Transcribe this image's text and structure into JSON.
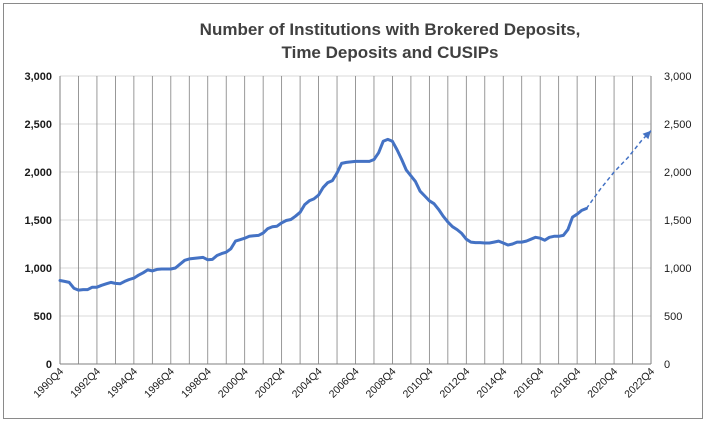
{
  "chart_data": {
    "type": "line",
    "title_line1": "Number of Institutions with Brokered Deposits,",
    "title_line2": "Time Deposits and CUSIPs",
    "xlabel": "",
    "ylabel": "",
    "ylim": [
      0,
      3000
    ],
    "y_ticks": [
      "0",
      "500",
      "1,000",
      "1,500",
      "2,000",
      "2,500",
      "3,000"
    ],
    "x_tick_labels": [
      "1990Q4",
      "1992Q4",
      "1994Q4",
      "1996Q4",
      "1998Q4",
      "2000Q4",
      "2002Q4",
      "2004Q4",
      "2006Q4",
      "2008Q4",
      "2010Q4",
      "2012Q4",
      "2014Q4",
      "2016Q4",
      "2018Q4",
      "2020Q4",
      "2022Q4"
    ],
    "x_range": [
      1990.75,
      2022.75
    ],
    "grid": "vertical lines every year, horizontal lines every 500",
    "legend": "none",
    "line_color": "#4472C4",
    "series": [
      {
        "style": "solid",
        "x": [
          1990.75,
          1991.0,
          1991.25,
          1991.5,
          1991.75,
          1992.0,
          1992.25,
          1992.5,
          1992.75,
          1993.0,
          1993.25,
          1993.5,
          1993.75,
          1994.0,
          1994.25,
          1994.5,
          1994.75,
          1995.0,
          1995.25,
          1995.5,
          1995.75,
          1996.0,
          1996.25,
          1996.5,
          1996.75,
          1997.0,
          1997.25,
          1997.5,
          1997.75,
          1998.0,
          1998.25,
          1998.5,
          1998.75,
          1999.0,
          1999.25,
          1999.5,
          1999.75,
          2000.0,
          2000.25,
          2000.5,
          2000.75,
          2001.0,
          2001.25,
          2001.5,
          2001.75,
          2002.0,
          2002.25,
          2002.5,
          2002.75,
          2003.0,
          2003.25,
          2003.5,
          2003.75,
          2004.0,
          2004.25,
          2004.5,
          2004.75,
          2005.0,
          2005.25,
          2005.5,
          2005.75,
          2006.0,
          2006.25,
          2006.5,
          2006.75,
          2007.0,
          2007.25,
          2007.5,
          2007.75,
          2008.0,
          2008.25,
          2008.5,
          2008.75,
          2009.0,
          2009.25,
          2009.5,
          2009.75,
          2010.0,
          2010.25,
          2010.5,
          2010.75,
          2011.0,
          2011.25,
          2011.5,
          2011.75,
          2012.0,
          2012.25,
          2012.5,
          2012.75,
          2013.0,
          2013.25,
          2013.5,
          2013.75,
          2014.0,
          2014.25,
          2014.5,
          2014.75,
          2015.0,
          2015.25,
          2015.5,
          2015.75,
          2016.0,
          2016.25,
          2016.5,
          2016.75,
          2017.0,
          2017.25,
          2017.5,
          2017.75,
          2018.0,
          2018.25,
          2018.5,
          2018.75,
          2019.0,
          2019.25
        ],
        "y": [
          870,
          860,
          850,
          790,
          770,
          775,
          775,
          800,
          800,
          820,
          835,
          850,
          840,
          835,
          860,
          880,
          895,
          925,
          950,
          980,
          970,
          985,
          990,
          990,
          990,
          1000,
          1040,
          1080,
          1095,
          1100,
          1105,
          1110,
          1085,
          1090,
          1130,
          1150,
          1165,
          1200,
          1280,
          1295,
          1310,
          1330,
          1335,
          1340,
          1365,
          1410,
          1430,
          1435,
          1470,
          1495,
          1505,
          1540,
          1580,
          1660,
          1700,
          1720,
          1760,
          1840,
          1890,
          1910,
          1990,
          2090,
          2100,
          2105,
          2110,
          2110,
          2110,
          2110,
          2130,
          2200,
          2320,
          2340,
          2320,
          2230,
          2130,
          2020,
          1960,
          1900,
          1800,
          1750,
          1700,
          1670,
          1610,
          1540,
          1480,
          1430,
          1400,
          1360,
          1300,
          1270,
          1265,
          1265,
          1260,
          1260,
          1270,
          1280,
          1260,
          1240,
          1250,
          1270,
          1270,
          1280,
          1300,
          1320,
          1310,
          1290,
          1320,
          1330,
          1330,
          1340,
          1400,
          1530,
          1560,
          1600,
          1620
        ]
      },
      {
        "style": "dashed",
        "x": [
          2019.25,
          2020.0,
          2020.75,
          2021.5,
          2022.25,
          2022.75
        ],
        "y": [
          1620,
          1820,
          2000,
          2150,
          2330,
          2430
        ]
      }
    ]
  }
}
